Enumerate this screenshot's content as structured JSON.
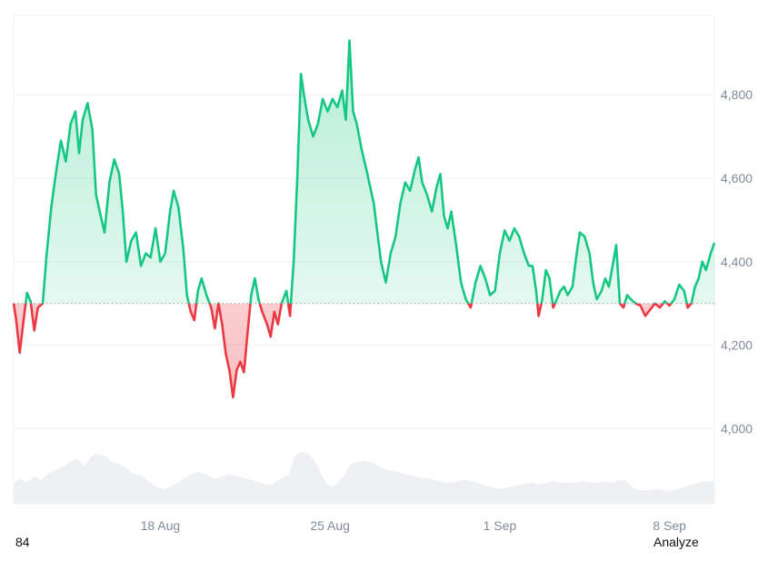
{
  "chart_data": {
    "type": "area",
    "title": "",
    "xlabel": "",
    "ylabel": "",
    "baseline": 4300,
    "ylim": [
      3820,
      4990
    ],
    "yticks": [
      4000,
      4200,
      4400,
      4600,
      4800
    ],
    "ytick_labels": [
      "4,000",
      "4,200",
      "4,400",
      "4,600",
      "4,800"
    ],
    "xticks": [
      {
        "label": "18 Aug",
        "day": 18
      },
      {
        "label": "25 Aug",
        "day": 25
      },
      {
        "label": "1 Sep",
        "day": 32
      },
      {
        "label": "8 Sep",
        "day": 39
      }
    ],
    "grid": true,
    "legend": "none",
    "colors": {
      "up": "#16c784",
      "down": "#ea3943",
      "up_fill": "#16c784",
      "down_fill": "#ea3943",
      "volume": "#eef0f3",
      "grid": "#eef0f3",
      "tick_text": "#808a9d",
      "baseline": "#a0a7b4"
    },
    "price_series": [
      [
        11.95,
        4300
      ],
      [
        12.05,
        4262
      ],
      [
        12.2,
        4182
      ],
      [
        12.35,
        4255
      ],
      [
        12.5,
        4325
      ],
      [
        12.65,
        4305
      ],
      [
        12.8,
        4235
      ],
      [
        12.95,
        4290
      ],
      [
        13.15,
        4300
      ],
      [
        13.3,
        4410
      ],
      [
        13.5,
        4530
      ],
      [
        13.7,
        4615
      ],
      [
        13.9,
        4690
      ],
      [
        14.1,
        4640
      ],
      [
        14.3,
        4730
      ],
      [
        14.5,
        4760
      ],
      [
        14.65,
        4660
      ],
      [
        14.8,
        4740
      ],
      [
        15.0,
        4780
      ],
      [
        15.2,
        4715
      ],
      [
        15.35,
        4560
      ],
      [
        15.5,
        4520
      ],
      [
        15.7,
        4470
      ],
      [
        15.9,
        4590
      ],
      [
        16.1,
        4645
      ],
      [
        16.3,
        4610
      ],
      [
        16.45,
        4520
      ],
      [
        16.6,
        4400
      ],
      [
        16.8,
        4450
      ],
      [
        17.0,
        4470
      ],
      [
        17.2,
        4390
      ],
      [
        17.4,
        4420
      ],
      [
        17.6,
        4410
      ],
      [
        17.8,
        4480
      ],
      [
        18.0,
        4400
      ],
      [
        18.2,
        4420
      ],
      [
        18.4,
        4520
      ],
      [
        18.55,
        4570
      ],
      [
        18.75,
        4530
      ],
      [
        18.95,
        4430
      ],
      [
        19.1,
        4320
      ],
      [
        19.25,
        4280
      ],
      [
        19.4,
        4260
      ],
      [
        19.55,
        4330
      ],
      [
        19.7,
        4360
      ],
      [
        19.9,
        4320
      ],
      [
        20.1,
        4290
      ],
      [
        20.25,
        4240
      ],
      [
        20.4,
        4300
      ],
      [
        20.55,
        4250
      ],
      [
        20.7,
        4180
      ],
      [
        20.85,
        4140
      ],
      [
        21.0,
        4075
      ],
      [
        21.15,
        4140
      ],
      [
        21.3,
        4160
      ],
      [
        21.45,
        4135
      ],
      [
        21.6,
        4230
      ],
      [
        21.75,
        4320
      ],
      [
        21.9,
        4360
      ],
      [
        22.05,
        4310
      ],
      [
        22.2,
        4280
      ],
      [
        22.4,
        4250
      ],
      [
        22.55,
        4220
      ],
      [
        22.7,
        4280
      ],
      [
        22.85,
        4250
      ],
      [
        23.0,
        4300
      ],
      [
        23.2,
        4330
      ],
      [
        23.35,
        4270
      ],
      [
        23.5,
        4400
      ],
      [
        23.65,
        4600
      ],
      [
        23.8,
        4850
      ],
      [
        23.95,
        4790
      ],
      [
        24.1,
        4740
      ],
      [
        24.3,
        4700
      ],
      [
        24.5,
        4730
      ],
      [
        24.7,
        4790
      ],
      [
        24.9,
        4760
      ],
      [
        25.1,
        4790
      ],
      [
        25.3,
        4770
      ],
      [
        25.5,
        4810
      ],
      [
        25.65,
        4740
      ],
      [
        25.8,
        4930
      ],
      [
        25.95,
        4760
      ],
      [
        26.1,
        4730
      ],
      [
        26.3,
        4670
      ],
      [
        26.5,
        4620
      ],
      [
        26.65,
        4580
      ],
      [
        26.8,
        4540
      ],
      [
        26.95,
        4470
      ],
      [
        27.1,
        4400
      ],
      [
        27.3,
        4350
      ],
      [
        27.5,
        4420
      ],
      [
        27.7,
        4460
      ],
      [
        27.9,
        4540
      ],
      [
        28.1,
        4590
      ],
      [
        28.3,
        4570
      ],
      [
        28.5,
        4620
      ],
      [
        28.65,
        4650
      ],
      [
        28.8,
        4590
      ],
      [
        29.0,
        4560
      ],
      [
        29.2,
        4520
      ],
      [
        29.4,
        4580
      ],
      [
        29.55,
        4610
      ],
      [
        29.7,
        4510
      ],
      [
        29.85,
        4480
      ],
      [
        30.0,
        4520
      ],
      [
        30.2,
        4440
      ],
      [
        30.4,
        4350
      ],
      [
        30.6,
        4310
      ],
      [
        30.8,
        4290
      ],
      [
        31.0,
        4350
      ],
      [
        31.2,
        4390
      ],
      [
        31.4,
        4360
      ],
      [
        31.6,
        4320
      ],
      [
        31.8,
        4330
      ],
      [
        32.0,
        4420
      ],
      [
        32.2,
        4475
      ],
      [
        32.4,
        4450
      ],
      [
        32.6,
        4480
      ],
      [
        32.8,
        4460
      ],
      [
        33.0,
        4420
      ],
      [
        33.2,
        4390
      ],
      [
        33.35,
        4390
      ],
      [
        33.5,
        4330
      ],
      [
        33.6,
        4270
      ],
      [
        33.75,
        4310
      ],
      [
        33.9,
        4380
      ],
      [
        34.05,
        4360
      ],
      [
        34.2,
        4290
      ],
      [
        34.35,
        4310
      ],
      [
        34.5,
        4330
      ],
      [
        34.65,
        4340
      ],
      [
        34.8,
        4320
      ],
      [
        35.0,
        4340
      ],
      [
        35.15,
        4410
      ],
      [
        35.3,
        4470
      ],
      [
        35.5,
        4460
      ],
      [
        35.7,
        4420
      ],
      [
        35.85,
        4350
      ],
      [
        36.0,
        4310
      ],
      [
        36.2,
        4330
      ],
      [
        36.35,
        4360
      ],
      [
        36.5,
        4340
      ],
      [
        36.65,
        4390
      ],
      [
        36.8,
        4440
      ],
      [
        36.95,
        4300
      ],
      [
        37.1,
        4290
      ],
      [
        37.25,
        4320
      ],
      [
        37.4,
        4310
      ],
      [
        37.6,
        4300
      ],
      [
        37.8,
        4295
      ],
      [
        38.0,
        4270
      ],
      [
        38.2,
        4285
      ],
      [
        38.4,
        4300
      ],
      [
        38.6,
        4290
      ],
      [
        38.8,
        4305
      ],
      [
        39.0,
        4295
      ],
      [
        39.2,
        4310
      ],
      [
        39.4,
        4345
      ],
      [
        39.6,
        4330
      ],
      [
        39.75,
        4290
      ],
      [
        39.9,
        4300
      ],
      [
        40.05,
        4340
      ],
      [
        40.2,
        4360
      ],
      [
        40.35,
        4400
      ],
      [
        40.5,
        4380
      ],
      [
        40.7,
        4420
      ],
      [
        40.85,
        4445
      ]
    ],
    "volume_series": [
      [
        11.95,
        3868
      ],
      [
        12.2,
        3880
      ],
      [
        12.5,
        3872
      ],
      [
        12.8,
        3885
      ],
      [
        13.1,
        3878
      ],
      [
        13.4,
        3893
      ],
      [
        13.7,
        3903
      ],
      [
        14.0,
        3910
      ],
      [
        14.3,
        3921
      ],
      [
        14.6,
        3926
      ],
      [
        14.9,
        3910
      ],
      [
        15.1,
        3930
      ],
      [
        15.3,
        3939
      ],
      [
        15.55,
        3937
      ],
      [
        15.8,
        3932
      ],
      [
        16.0,
        3920
      ],
      [
        16.3,
        3916
      ],
      [
        16.6,
        3905
      ],
      [
        16.9,
        3892
      ],
      [
        17.2,
        3888
      ],
      [
        17.5,
        3875
      ],
      [
        17.8,
        3862
      ],
      [
        18.1,
        3856
      ],
      [
        18.4,
        3860
      ],
      [
        18.7,
        3870
      ],
      [
        19.0,
        3882
      ],
      [
        19.3,
        3893
      ],
      [
        19.6,
        3896
      ],
      [
        19.9,
        3890
      ],
      [
        20.2,
        3880
      ],
      [
        20.5,
        3884
      ],
      [
        20.8,
        3891
      ],
      [
        21.1,
        3888
      ],
      [
        21.4,
        3882
      ],
      [
        21.7,
        3878
      ],
      [
        22.0,
        3872
      ],
      [
        22.3,
        3866
      ],
      [
        22.6,
        3865
      ],
      [
        22.9,
        3878
      ],
      [
        23.1,
        3885
      ],
      [
        23.3,
        3890
      ],
      [
        23.55,
        3935
      ],
      [
        23.8,
        3945
      ],
      [
        24.1,
        3940
      ],
      [
        24.35,
        3925
      ],
      [
        24.6,
        3895
      ],
      [
        24.85,
        3868
      ],
      [
        25.1,
        3860
      ],
      [
        25.35,
        3872
      ],
      [
        25.6,
        3890
      ],
      [
        25.85,
        3915
      ],
      [
        26.1,
        3920
      ],
      [
        26.4,
        3923
      ],
      [
        26.7,
        3920
      ],
      [
        27.0,
        3910
      ],
      [
        27.3,
        3902
      ],
      [
        27.6,
        3898
      ],
      [
        27.9,
        3895
      ],
      [
        28.2,
        3890
      ],
      [
        28.5,
        3885
      ],
      [
        28.8,
        3882
      ],
      [
        29.1,
        3880
      ],
      [
        29.4,
        3875
      ],
      [
        29.7,
        3872
      ],
      [
        30.0,
        3870
      ],
      [
        30.3,
        3875
      ],
      [
        30.6,
        3878
      ],
      [
        30.9,
        3874
      ],
      [
        31.2,
        3868
      ],
      [
        31.5,
        3862
      ],
      [
        31.8,
        3857
      ],
      [
        32.1,
        3856
      ],
      [
        32.4,
        3860
      ],
      [
        32.7,
        3864
      ],
      [
        33.0,
        3868
      ],
      [
        33.3,
        3870
      ],
      [
        33.6,
        3867
      ],
      [
        33.9,
        3870
      ],
      [
        34.2,
        3874
      ],
      [
        34.5,
        3870
      ],
      [
        34.8,
        3872
      ],
      [
        35.1,
        3870
      ],
      [
        35.4,
        3874
      ],
      [
        35.7,
        3871
      ],
      [
        36.0,
        3870
      ],
      [
        36.3,
        3874
      ],
      [
        36.6,
        3870
      ],
      [
        36.9,
        3875
      ],
      [
        37.1,
        3878
      ],
      [
        37.3,
        3868
      ],
      [
        37.6,
        3856
      ],
      [
        37.9,
        3852
      ],
      [
        38.2,
        3852
      ],
      [
        38.5,
        3856
      ],
      [
        38.8,
        3852
      ],
      [
        39.1,
        3850
      ],
      [
        39.4,
        3856
      ],
      [
        39.7,
        3863
      ],
      [
        40.0,
        3866
      ],
      [
        40.3,
        3872
      ],
      [
        40.6,
        3874
      ],
      [
        40.85,
        3874
      ]
    ]
  },
  "footer": {
    "left_text": "84",
    "right_text": "Analyze"
  }
}
